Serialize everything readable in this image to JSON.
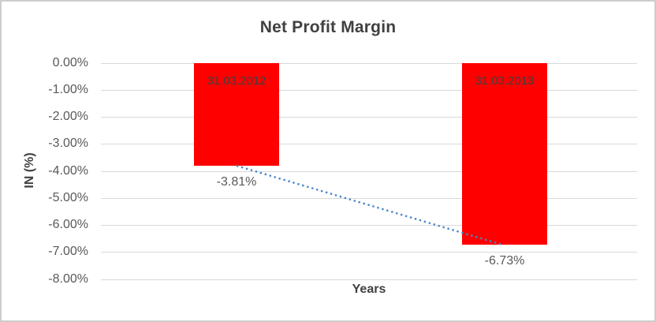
{
  "chart_data": {
    "type": "bar",
    "title": "Net Profit Margin",
    "xlabel": "Years",
    "ylabel": "IN (%)",
    "categories": [
      "31.03.2012",
      "31.03.2013"
    ],
    "values": [
      -3.81,
      -6.73
    ],
    "data_labels": [
      "-3.81%",
      "-6.73%"
    ],
    "yticks": [
      "0.00%",
      "-1.00%",
      "-2.00%",
      "-3.00%",
      "-4.00%",
      "-5.00%",
      "-6.00%",
      "-7.00%",
      "-8.00%"
    ],
    "ylim": [
      0,
      -8
    ],
    "grid": "horizontal",
    "legend": "none",
    "bar_color": "#FF0000",
    "bar_label_position": "inside-top",
    "data_label_position": "outside-end",
    "trendline": {
      "style": "dotted",
      "color": "#4A86C8",
      "from_value": -3.81,
      "to_value": -6.73
    },
    "grid_color": "#D9D9D9",
    "title_color": "#404040",
    "axis_label_color": "#595959"
  }
}
